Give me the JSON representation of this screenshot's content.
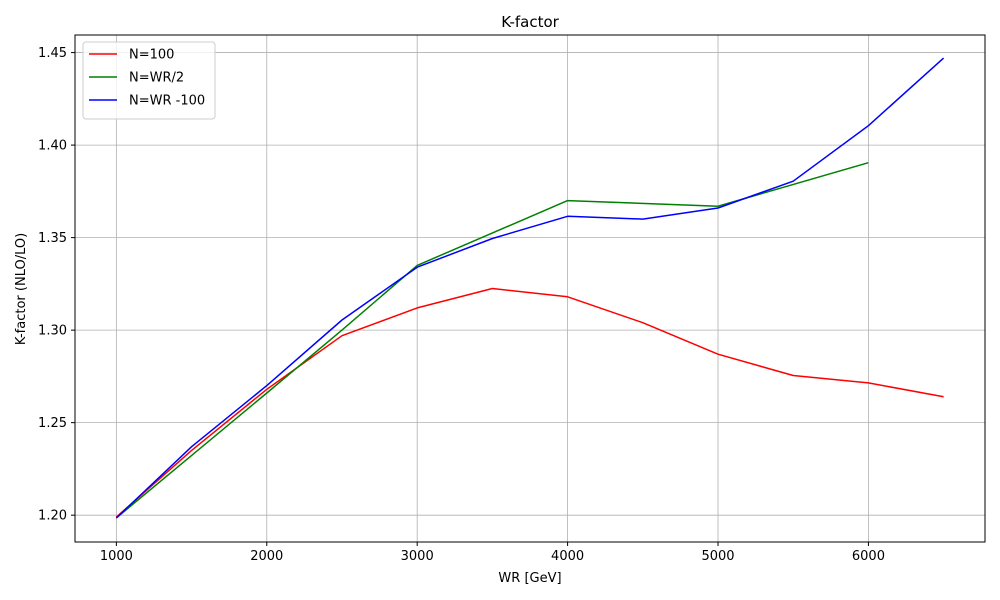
{
  "chart_data": {
    "type": "line",
    "title": "K-factor",
    "xlabel": "WR [GeV]",
    "ylabel": "K-factor (NLO/LO)",
    "xlim": [
      725,
      6775
    ],
    "ylim": [
      1.1855,
      1.4595
    ],
    "xticks": [
      1000,
      2000,
      3000,
      4000,
      5000,
      6000
    ],
    "yticks": [
      1.2,
      1.25,
      1.3,
      1.35,
      1.4,
      1.45
    ],
    "xtick_labels": [
      "1000",
      "2000",
      "3000",
      "4000",
      "5000",
      "6000"
    ],
    "ytick_labels": [
      "1.20",
      "1.25",
      "1.30",
      "1.35",
      "1.40",
      "1.45"
    ],
    "grid": true,
    "legend_position": "top-left",
    "series": [
      {
        "name": "N=100",
        "color": "#ff0000",
        "x": [
          1000,
          1500,
          2000,
          2500,
          3000,
          3500,
          4000,
          4500,
          5000,
          5500,
          6000,
          6500
        ],
        "y": [
          1.199,
          1.235,
          1.268,
          1.297,
          1.312,
          1.3225,
          1.318,
          1.304,
          1.287,
          1.2755,
          1.2715,
          1.264
        ]
      },
      {
        "name": "N=WR/2",
        "color": "#008000",
        "x": [
          1000,
          2000,
          2500,
          3000,
          4000,
          5000,
          6000
        ],
        "y": [
          1.1985,
          1.266,
          1.3,
          1.335,
          1.37,
          1.367,
          1.3905
        ]
      },
      {
        "name": "N=WR -100",
        "color": "#0000ff",
        "x": [
          1000,
          1500,
          2000,
          2500,
          3000,
          3500,
          4000,
          4500,
          5000,
          5500,
          6000,
          6500
        ],
        "y": [
          1.1985,
          1.237,
          1.27,
          1.3055,
          1.334,
          1.3495,
          1.3615,
          1.36,
          1.366,
          1.3805,
          1.4105,
          1.447
        ]
      }
    ]
  }
}
